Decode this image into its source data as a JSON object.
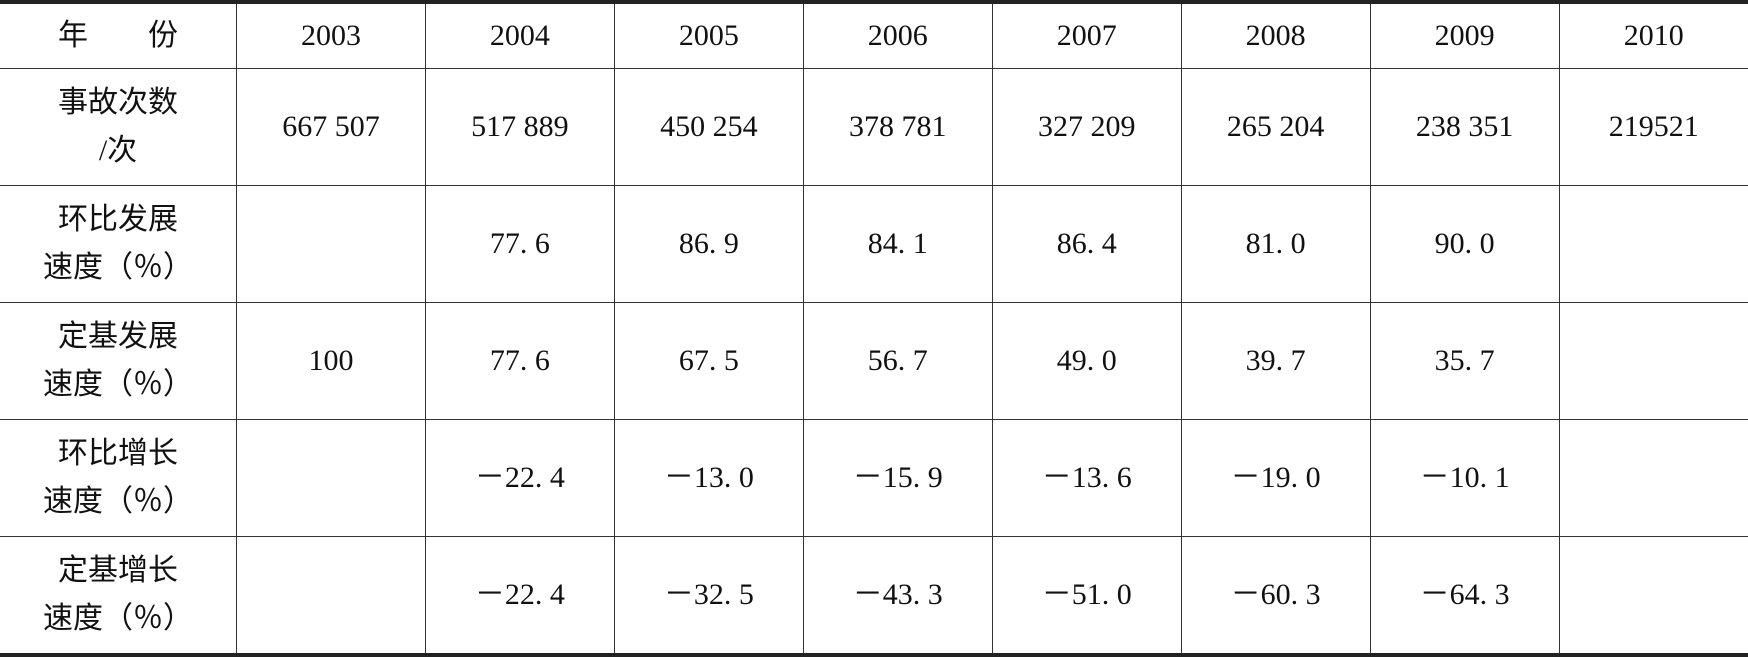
{
  "table": {
    "header": [
      "年　　份",
      "2003",
      "2004",
      "2005",
      "2006",
      "2007",
      "2008",
      "2009",
      "2010"
    ],
    "rows": [
      {
        "label": [
          "事故次数",
          "/次"
        ],
        "cells": [
          "667 507",
          "517 889",
          "450 254",
          "378 781",
          "327 209",
          "265 204",
          "238 351",
          "219521"
        ]
      },
      {
        "label": [
          "环比发展",
          "速度（％）"
        ],
        "cells": [
          null,
          "77. 6",
          "86. 9",
          "84. 1",
          "86. 4",
          "81. 0",
          "90. 0",
          null
        ]
      },
      {
        "label": [
          "定基发展",
          "速度（％）"
        ],
        "cells": [
          "100",
          "77. 6",
          "67. 5",
          "56. 7",
          "49. 0",
          "39. 7",
          "35. 7",
          null
        ]
      },
      {
        "label": [
          "环比增长",
          "速度（％）"
        ],
        "cells": [
          null,
          "－22. 4",
          "－13. 0",
          "－15. 9",
          "－13. 6",
          "－19. 0",
          "－10. 1",
          null
        ]
      },
      {
        "label": [
          "定基增长",
          "速度（％）"
        ],
        "cells": [
          null,
          "－22. 4",
          "－32. 5",
          "－43. 3",
          "－51. 0",
          "－60. 3",
          "－64. 3",
          null
        ]
      }
    ]
  }
}
